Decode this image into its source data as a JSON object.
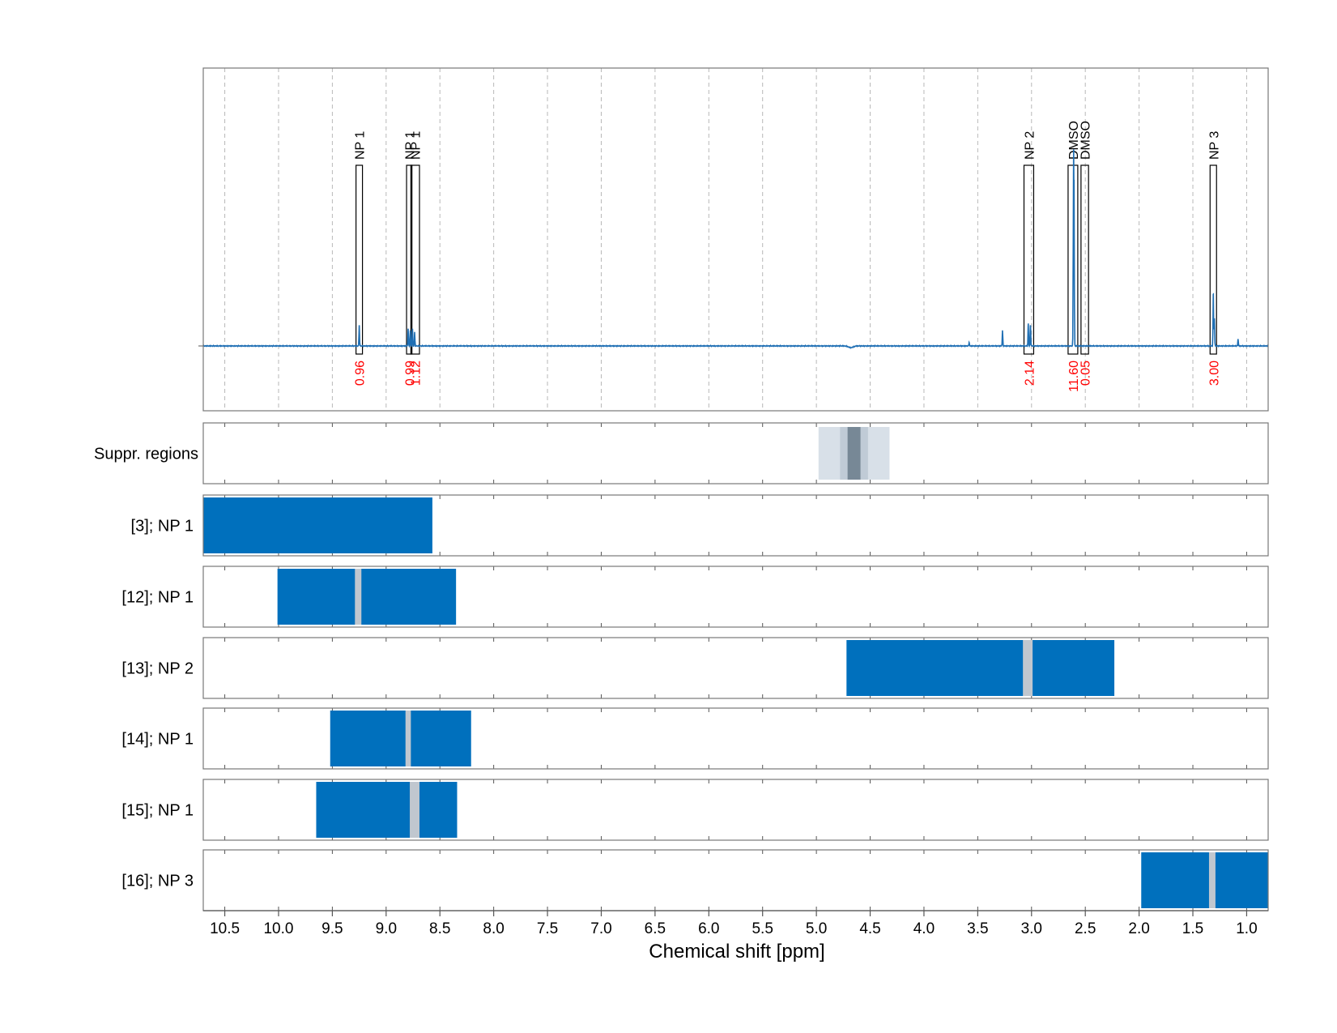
{
  "colors": {
    "spectrum": "#1f6fb4",
    "region_fill": "#0070bd",
    "excluded": "#c0c7cf",
    "integral_label": "#ff0000",
    "supp_light": "#d8e0e8",
    "supp_mid": "#c0cbd6",
    "supp_dark": "#778896",
    "grid": "#b8b8b8",
    "frame": "#777777"
  },
  "chart_data": {
    "type": "nmr-spectrum",
    "xlabel": "Chemical shift [ppm]",
    "x_range": [
      10.7,
      0.8
    ],
    "ticks": [
      10.5,
      10.0,
      9.5,
      9.0,
      8.5,
      8.0,
      7.5,
      7.0,
      6.5,
      6.0,
      5.5,
      5.0,
      4.5,
      4.0,
      3.5,
      3.0,
      2.5,
      2.0,
      1.5,
      1.0
    ],
    "tick_labels": [
      "10.5",
      "10.0",
      "9.5",
      "9.0",
      "8.5",
      "8.0",
      "7.5",
      "7.0",
      "6.5",
      "6.0",
      "5.5",
      "5.0",
      "4.5",
      "4.0",
      "3.5",
      "3.0",
      "2.5",
      "2.0",
      "1.5",
      "1.0"
    ],
    "spectrum_peaks": [
      {
        "ppm": 9.25,
        "intensity": 0.12
      },
      {
        "ppm": 8.795,
        "intensity": 0.1
      },
      {
        "ppm": 8.775,
        "intensity": 0.09
      },
      {
        "ppm": 8.755,
        "intensity": 0.1
      },
      {
        "ppm": 8.735,
        "intensity": 0.08
      },
      {
        "ppm": 3.58,
        "intensity": 0.02
      },
      {
        "ppm": 3.27,
        "intensity": 0.09
      },
      {
        "ppm": 3.03,
        "intensity": 0.13
      },
      {
        "ppm": 3.01,
        "intensity": 0.12
      },
      {
        "ppm": 2.61,
        "intensity": 0.99
      },
      {
        "ppm": 2.605,
        "intensity": 0.85
      },
      {
        "ppm": 1.31,
        "intensity": 0.3
      },
      {
        "ppm": 1.3,
        "intensity": 0.16
      },
      {
        "ppm": 1.08,
        "intensity": 0.04
      }
    ],
    "spectrum_dip": {
      "ppm": 4.68,
      "intensity": -0.01
    },
    "annotations": [
      {
        "label": "NP 1",
        "value": "0.96",
        "start": 9.28,
        "end": 9.22
      },
      {
        "label": "NP 1",
        "value": "0.99",
        "start": 8.81,
        "end": 8.76
      },
      {
        "label": "NP 1",
        "value": "1.12",
        "start": 8.77,
        "end": 8.69
      },
      {
        "label": "NP 2",
        "value": "2.14",
        "start": 3.07,
        "end": 2.98
      },
      {
        "label": "DMSO",
        "value": "11.60",
        "start": 2.66,
        "end": 2.57
      },
      {
        "label": "DMSO",
        "value": "0.05",
        "start": 2.54,
        "end": 2.47
      },
      {
        "label": "NP 3",
        "value": "3.00",
        "start": 1.34,
        "end": 1.28
      }
    ],
    "suppression": {
      "label": "Suppr. regions",
      "bands": [
        {
          "start": 4.98,
          "end": 4.32,
          "level": "light"
        },
        {
          "start": 4.78,
          "end": 4.52,
          "level": "mid"
        },
        {
          "start": 4.71,
          "end": 4.59,
          "level": "dark"
        }
      ]
    },
    "fit_regions": [
      {
        "label": "[3]; NP 1",
        "start": 10.7,
        "end": 8.57,
        "excluded": []
      },
      {
        "label": "[12]; NP 1",
        "start": 10.01,
        "end": 8.35,
        "excluded": [
          [
            9.29,
            9.23
          ]
        ]
      },
      {
        "label": "[13]; NP 2",
        "start": 4.72,
        "end": 2.23,
        "excluded": [
          [
            3.08,
            2.99
          ]
        ]
      },
      {
        "label": "[14]; NP 1",
        "start": 9.52,
        "end": 8.21,
        "excluded": [
          [
            8.82,
            8.77
          ]
        ]
      },
      {
        "label": "[15]; NP 1",
        "start": 9.65,
        "end": 8.34,
        "excluded": [
          [
            8.78,
            8.69
          ]
        ]
      },
      {
        "label": "[16]; NP 3",
        "start": 1.98,
        "end": 0.8,
        "excluded": [
          [
            1.35,
            1.29
          ]
        ]
      }
    ]
  }
}
